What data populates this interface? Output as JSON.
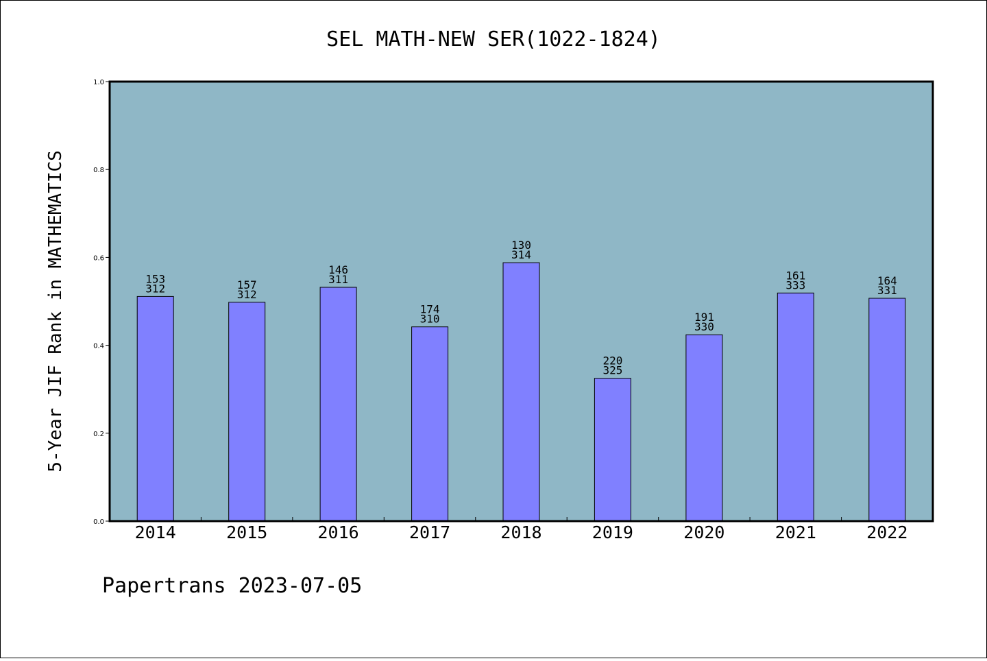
{
  "chart_data": {
    "type": "bar",
    "title": "SEL MATH-NEW SER(1022-1824)",
    "ylabel": "5-Year JIF Rank in MATHEMATICS",
    "xlabel": "",
    "ylim": [
      0,
      1.0
    ],
    "yticks": [
      "0.0",
      "0.2",
      "0.4",
      "0.6",
      "0.8",
      "1.0"
    ],
    "categories": [
      "2014",
      "2015",
      "2016",
      "2017",
      "2018",
      "2019",
      "2020",
      "2021",
      "2022"
    ],
    "values": [
      0.511,
      0.498,
      0.532,
      0.442,
      0.588,
      0.325,
      0.424,
      0.519,
      0.507
    ],
    "labels_top": [
      "153",
      "157",
      "146",
      "174",
      "130",
      "220",
      "191",
      "161",
      "164"
    ],
    "labels_bottom": [
      "312",
      "312",
      "311",
      "310",
      "314",
      "325",
      "330",
      "333",
      "331"
    ],
    "grid": false,
    "colors": {
      "plot_background": "#8fb7c6",
      "bar_fill": "#8080ff",
      "bar_stroke": "#000000"
    }
  },
  "footer": {
    "text": "Papertrans 2023-07-05"
  }
}
